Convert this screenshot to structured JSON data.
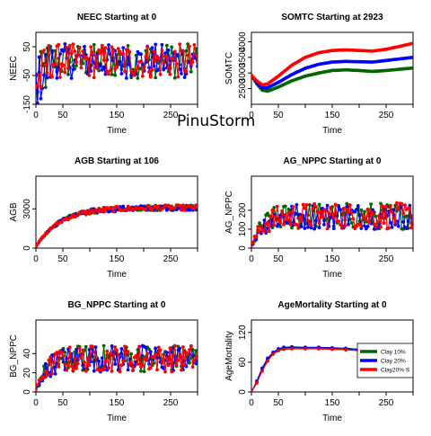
{
  "overlay_text": "PinuStorm",
  "series_colors": {
    "Clay 10%": "#006400",
    "Clay 20%": "#0000ff",
    "Clay20% S": "#ff0000"
  },
  "legend": {
    "placement": "right",
    "entries": [
      "Clay 10% ",
      "Clay 20% ",
      "Clay20% S"
    ]
  },
  "chart_data": [
    {
      "type": "line",
      "title": "NEEC Starting at  0",
      "xlabel": "Time",
      "ylabel": "NEEC",
      "xlim": [
        0,
        300
      ],
      "ylim": [
        -150,
        100
      ],
      "xticks": [
        0,
        50,
        150,
        250
      ],
      "yticks": [
        -150,
        -50,
        50
      ],
      "pattern": "noisy",
      "base": 0,
      "early_dip": -80,
      "amplitude": 60,
      "series": [
        {
          "name": "Clay 10% ",
          "color": "#006400",
          "offset": 0
        },
        {
          "name": "Clay 20% ",
          "color": "#0000ff",
          "offset": 0
        },
        {
          "name": "Clay20% S",
          "color": "#ff0000",
          "offset": 0
        }
      ]
    },
    {
      "type": "line",
      "title": "SOMTC Starting at  2923",
      "xlabel": "Time",
      "ylabel": "SOMTC",
      "xlim": [
        0,
        300
      ],
      "ylim": [
        2000,
        4300
      ],
      "xticks": [
        0,
        50,
        150,
        250
      ],
      "yticks": [
        2500,
        3000,
        3500,
        4000
      ],
      "pattern": "smooth",
      "series": [
        {
          "name": "Clay 10% ",
          "color": "#006400",
          "x": [
            0,
            10,
            20,
            30,
            50,
            75,
            100,
            125,
            150,
            175,
            200,
            225,
            250,
            275,
            300
          ],
          "y": [
            2923,
            2650,
            2450,
            2420,
            2550,
            2750,
            2900,
            3000,
            3080,
            3100,
            3080,
            3050,
            3080,
            3120,
            3160
          ]
        },
        {
          "name": "Clay 20% ",
          "color": "#0000ff",
          "x": [
            0,
            10,
            20,
            30,
            50,
            75,
            100,
            125,
            150,
            175,
            200,
            225,
            250,
            275,
            300
          ],
          "y": [
            2923,
            2700,
            2520,
            2530,
            2700,
            2950,
            3150,
            3280,
            3350,
            3370,
            3360,
            3350,
            3400,
            3450,
            3500
          ]
        },
        {
          "name": "Clay20% S",
          "color": "#ff0000",
          "x": [
            0,
            10,
            20,
            30,
            50,
            75,
            100,
            125,
            150,
            175,
            200,
            225,
            250,
            275,
            300
          ],
          "y": [
            2923,
            2750,
            2620,
            2650,
            2900,
            3250,
            3500,
            3650,
            3720,
            3740,
            3720,
            3700,
            3760,
            3850,
            3950
          ]
        }
      ]
    },
    {
      "type": "line",
      "title": "AGB Starting at  106",
      "xlabel": "Time",
      "ylabel": "AGB",
      "xlim": [
        0,
        300
      ],
      "ylim": [
        0,
        5500
      ],
      "xticks": [
        0,
        50,
        150,
        250
      ],
      "yticks": [
        0,
        3000
      ],
      "pattern": "saturating",
      "start": 106,
      "plateau": 3100,
      "rise": 45,
      "amplitude": 200,
      "series": [
        {
          "name": "Clay 10% ",
          "color": "#006400",
          "offset": 0
        },
        {
          "name": "Clay 20% ",
          "color": "#0000ff",
          "offset": 0
        },
        {
          "name": "Clay20% S",
          "color": "#ff0000",
          "offset": 0
        }
      ]
    },
    {
      "type": "line",
      "title": "AG_NPPC Starting at  0",
      "xlabel": "Time",
      "ylabel": "AG_NPPC",
      "xlim": [
        0,
        300
      ],
      "ylim": [
        0,
        380
      ],
      "xticks": [
        0,
        50,
        150,
        250
      ],
      "yticks": [
        0,
        100,
        200
      ],
      "pattern": "saturating",
      "start": 0,
      "plateau": 170,
      "rise": 18,
      "amplitude": 70,
      "series": [
        {
          "name": "Clay 10% ",
          "color": "#006400",
          "offset": 0
        },
        {
          "name": "Clay 20% ",
          "color": "#0000ff",
          "offset": 0
        },
        {
          "name": "Clay20% S",
          "color": "#ff0000",
          "offset": 0
        }
      ]
    },
    {
      "type": "line",
      "title": "BG_NPPC Starting at  0",
      "xlabel": "Time",
      "ylabel": "BG_NPPC",
      "xlim": [
        0,
        300
      ],
      "ylim": [
        0,
        75
      ],
      "xticks": [
        0,
        50,
        150,
        250
      ],
      "yticks": [
        0,
        20,
        40
      ],
      "pattern": "saturating",
      "start": 0,
      "plateau": 35,
      "rise": 18,
      "amplitude": 14,
      "series": [
        {
          "name": "Clay 10% ",
          "color": "#006400",
          "offset": 0
        },
        {
          "name": "Clay 20% ",
          "color": "#0000ff",
          "offset": 0
        },
        {
          "name": "Clay20% S",
          "color": "#ff0000",
          "offset": 0
        }
      ]
    },
    {
      "type": "line",
      "title": "AgeMortality Starting at  0",
      "xlabel": "Time",
      "ylabel": "AgeMortality",
      "xlim": [
        0,
        300
      ],
      "ylim": [
        0,
        145
      ],
      "xticks": [
        0,
        50,
        150,
        250
      ],
      "yticks": [
        0,
        60,
        120
      ],
      "pattern": "smooth",
      "series": [
        {
          "name": "Clay 10% ",
          "color": "#006400",
          "x": [
            0,
            10,
            20,
            30,
            40,
            50,
            60,
            75,
            100,
            125,
            150,
            175,
            200,
            225,
            250,
            275,
            300
          ],
          "y": [
            0,
            20,
            45,
            65,
            78,
            85,
            88,
            89,
            88,
            88,
            87,
            86,
            84,
            82,
            80,
            78,
            76
          ]
        },
        {
          "name": "Clay 20% ",
          "color": "#0000ff",
          "x": [
            0,
            10,
            20,
            30,
            40,
            50,
            60,
            75,
            100,
            125,
            150,
            175,
            200,
            225,
            250,
            275,
            300
          ],
          "y": [
            0,
            22,
            48,
            68,
            80,
            87,
            90,
            91,
            90,
            90,
            89,
            88,
            86,
            84,
            82,
            80,
            78
          ]
        },
        {
          "name": "Clay20% S",
          "color": "#ff0000",
          "x": [
            0,
            10,
            20,
            30,
            40,
            50,
            60,
            75,
            100,
            125,
            150,
            175,
            200,
            225,
            250,
            275,
            300
          ],
          "y": [
            0,
            18,
            42,
            62,
            76,
            83,
            86,
            87,
            87,
            87,
            86,
            85,
            83,
            81,
            79,
            77,
            75
          ]
        }
      ]
    }
  ]
}
